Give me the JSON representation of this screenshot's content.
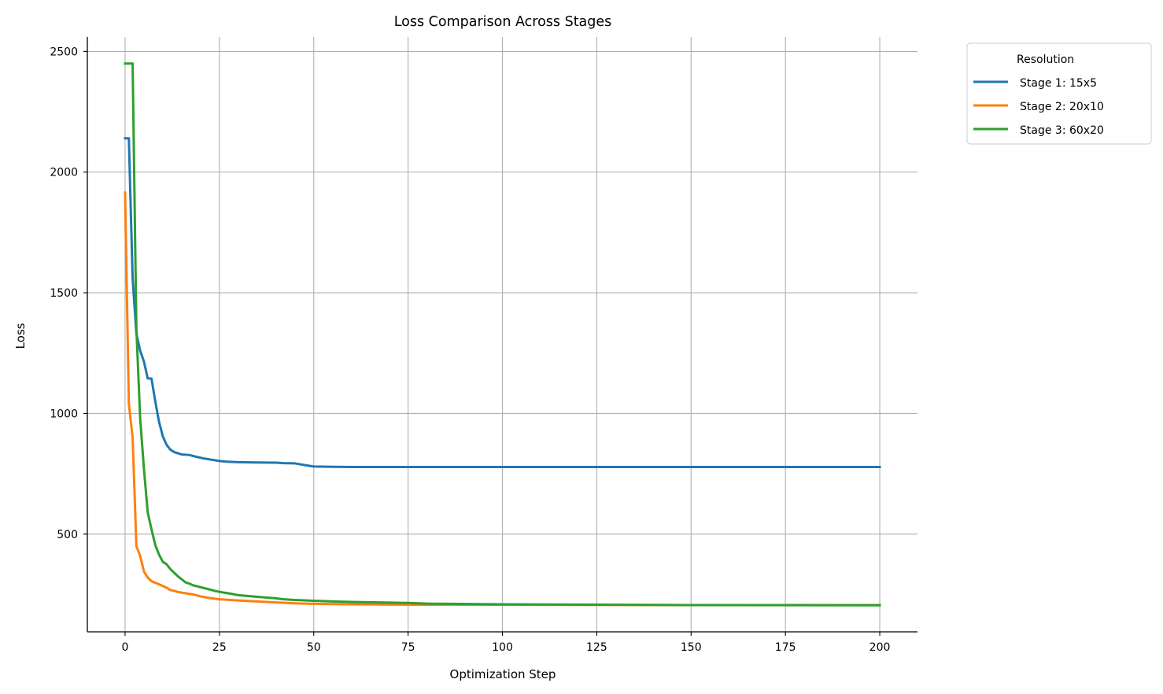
{
  "chart_data": {
    "type": "line",
    "title": "Loss Comparison Across Stages",
    "xlabel": "Optimization Step",
    "ylabel": "Loss",
    "xlim": [
      -10,
      210
    ],
    "ylim": [
      95,
      2560
    ],
    "xticks": [
      0,
      25,
      50,
      75,
      100,
      125,
      150,
      175,
      200
    ],
    "yticks": [
      500,
      1000,
      1500,
      2000,
      2500
    ],
    "grid": true,
    "legend": {
      "title": "Resolution",
      "placement": "outside-top-right"
    },
    "series": [
      {
        "name": "Stage 1: 15x5",
        "color": "#1f77b4",
        "points": [
          [
            0,
            2140
          ],
          [
            1,
            2140
          ],
          [
            2,
            1560
          ],
          [
            3,
            1330
          ],
          [
            4,
            1260
          ],
          [
            5,
            1215
          ],
          [
            6,
            1145
          ],
          [
            7,
            1145
          ],
          [
            8,
            1050
          ],
          [
            9,
            965
          ],
          [
            10,
            905
          ],
          [
            11,
            870
          ],
          [
            12,
            850
          ],
          [
            13,
            840
          ],
          [
            14,
            835
          ],
          [
            15,
            830
          ],
          [
            17,
            828
          ],
          [
            19,
            820
          ],
          [
            21,
            813
          ],
          [
            23,
            808
          ],
          [
            25,
            803
          ],
          [
            27,
            800
          ],
          [
            30,
            798
          ],
          [
            35,
            797
          ],
          [
            40,
            796
          ],
          [
            42,
            794
          ],
          [
            45,
            793
          ],
          [
            48,
            785
          ],
          [
            50,
            780
          ],
          [
            55,
            779
          ],
          [
            60,
            778
          ],
          [
            80,
            778
          ],
          [
            100,
            778
          ],
          [
            150,
            778
          ],
          [
            200,
            778
          ]
        ]
      },
      {
        "name": "Stage 2: 20x10",
        "color": "#ff7f0e",
        "points": [
          [
            0,
            1915
          ],
          [
            1,
            1040
          ],
          [
            2,
            900
          ],
          [
            3,
            450
          ],
          [
            4,
            410
          ],
          [
            5,
            345
          ],
          [
            6,
            320
          ],
          [
            7,
            305
          ],
          [
            8,
            298
          ],
          [
            9,
            292
          ],
          [
            10,
            285
          ],
          [
            11,
            278
          ],
          [
            12,
            268
          ],
          [
            13,
            265
          ],
          [
            14,
            260
          ],
          [
            16,
            255
          ],
          [
            18,
            250
          ],
          [
            20,
            242
          ],
          [
            22,
            236
          ],
          [
            25,
            230
          ],
          [
            30,
            225
          ],
          [
            35,
            221
          ],
          [
            40,
            217
          ],
          [
            45,
            213
          ],
          [
            50,
            211
          ],
          [
            55,
            210
          ],
          [
            60,
            209
          ],
          [
            70,
            208
          ],
          [
            80,
            207
          ],
          [
            100,
            207
          ],
          [
            150,
            206
          ],
          [
            200,
            206
          ]
        ]
      },
      {
        "name": "Stage 3: 60x20",
        "color": "#2ca02c",
        "points": [
          [
            0,
            2450
          ],
          [
            1,
            2450
          ],
          [
            2,
            2450
          ],
          [
            3,
            1350
          ],
          [
            4,
            980
          ],
          [
            5,
            770
          ],
          [
            6,
            590
          ],
          [
            7,
            520
          ],
          [
            8,
            455
          ],
          [
            9,
            415
          ],
          [
            10,
            385
          ],
          [
            11,
            375
          ],
          [
            12,
            355
          ],
          [
            13,
            340
          ],
          [
            14,
            325
          ],
          [
            15,
            313
          ],
          [
            16,
            300
          ],
          [
            17,
            295
          ],
          [
            18,
            288
          ],
          [
            20,
            280
          ],
          [
            22,
            272
          ],
          [
            24,
            264
          ],
          [
            26,
            258
          ],
          [
            28,
            253
          ],
          [
            30,
            247
          ],
          [
            35,
            240
          ],
          [
            40,
            234
          ],
          [
            42,
            230
          ],
          [
            45,
            227
          ],
          [
            50,
            224
          ],
          [
            55,
            221
          ],
          [
            60,
            219
          ],
          [
            70,
            216
          ],
          [
            75,
            215
          ],
          [
            80,
            212
          ],
          [
            100,
            209
          ],
          [
            150,
            206
          ],
          [
            200,
            205
          ]
        ]
      }
    ]
  }
}
